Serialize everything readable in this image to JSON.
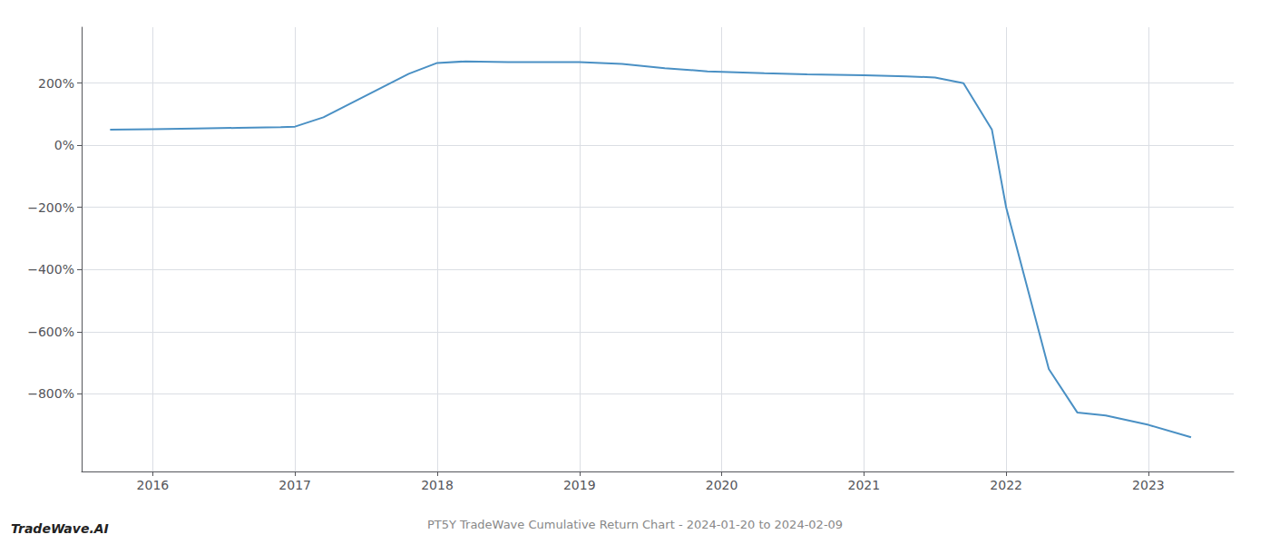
{
  "chart_data": {
    "type": "line",
    "title": "PT5Y TradeWave Cumulative Return Chart - 2024-01-20 to 2024-02-09",
    "annotations": [
      "TradeWave.AI"
    ],
    "x": [
      2015.7,
      2016.0,
      2016.3,
      2016.6,
      2016.9,
      2017.0,
      2017.2,
      2017.5,
      2017.8,
      2018.0,
      2018.2,
      2018.5,
      2019.0,
      2019.3,
      2019.6,
      2019.9,
      2020.3,
      2020.6,
      2020.9,
      2021.0,
      2021.3,
      2021.5,
      2021.7,
      2021.9,
      2022.0,
      2022.3,
      2022.5,
      2022.7,
      2023.0,
      2023.3
    ],
    "values": [
      50,
      52,
      54,
      56,
      58,
      60,
      90,
      160,
      230,
      265,
      270,
      268,
      268,
      262,
      248,
      238,
      232,
      228,
      226,
      225,
      222,
      218,
      200,
      50,
      -200,
      -720,
      -860,
      -870,
      -900,
      -940
    ],
    "color": "#4a90c4",
    "xlim": [
      2015.5,
      2023.6
    ],
    "ylim": [
      -1050,
      380
    ],
    "xticks": [
      2016,
      2017,
      2018,
      2019,
      2020,
      2021,
      2022,
      2023
    ],
    "yticks": [
      {
        "value": 200,
        "label": "200%"
      },
      {
        "value": 0,
        "label": "0%"
      },
      {
        "value": -200,
        "label": "−200%"
      },
      {
        "value": -400,
        "label": "−400%"
      },
      {
        "value": -600,
        "label": "−600%"
      },
      {
        "value": -800,
        "label": "−800%"
      }
    ],
    "grid": true
  }
}
